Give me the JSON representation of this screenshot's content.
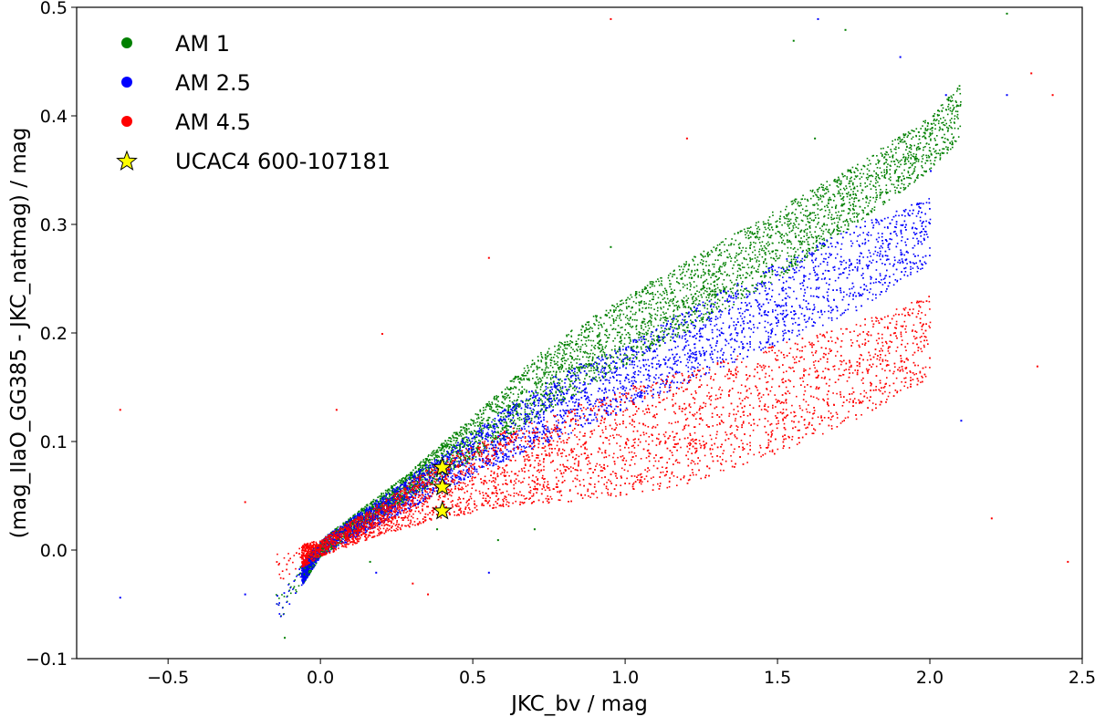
{
  "chart_data": {
    "type": "scatter",
    "title": "",
    "xlabel": "JKC_bv / mag",
    "ylabel": "(mag_IIaO_GG385 - JKC_natmag) / mag",
    "xlim": [
      -0.8,
      2.5
    ],
    "ylim": [
      -0.1,
      0.5
    ],
    "xticks": [
      -0.5,
      0.0,
      0.5,
      1.0,
      1.5,
      2.0,
      2.5
    ],
    "xtick_labels": [
      "−0.5",
      "0.0",
      "0.5",
      "1.0",
      "1.5",
      "2.0",
      "2.5"
    ],
    "yticks": [
      -0.1,
      0.0,
      0.1,
      0.2,
      0.3,
      0.4,
      0.5
    ],
    "ytick_labels": [
      "−0.1",
      "0.0",
      "0.1",
      "0.2",
      "0.3",
      "0.4",
      "0.5"
    ],
    "grid": false,
    "legend_position": "top-left",
    "series": [
      {
        "name": "AM 1",
        "color": "#008000",
        "marker": "dot",
        "envelope": [
          [
            -0.15,
            -0.07,
            -0.04
          ],
          [
            0.0,
            -0.005,
            0.01
          ],
          [
            0.3,
            0.05,
            0.075
          ],
          [
            0.5,
            0.085,
            0.125
          ],
          [
            0.75,
            0.13,
            0.19
          ],
          [
            1.0,
            0.17,
            0.235
          ],
          [
            1.25,
            0.21,
            0.275
          ],
          [
            1.5,
            0.25,
            0.315
          ],
          [
            1.75,
            0.3,
            0.355
          ],
          [
            2.0,
            0.35,
            0.4
          ],
          [
            2.1,
            0.38,
            0.43
          ]
        ],
        "outliers": [
          [
            -0.12,
            -0.08
          ],
          [
            0.16,
            -0.01
          ],
          [
            0.38,
            0.02
          ],
          [
            0.58,
            0.01
          ],
          [
            1.55,
            0.47
          ],
          [
            1.72,
            0.48
          ],
          [
            2.25,
            0.495
          ],
          [
            1.62,
            0.38
          ],
          [
            0.95,
            0.28
          ],
          [
            0.7,
            0.02
          ]
        ]
      },
      {
        "name": "AM 2.5",
        "color": "#0000ff",
        "marker": "dot",
        "envelope": [
          [
            -0.15,
            -0.07,
            -0.04
          ],
          [
            0.0,
            -0.005,
            0.01
          ],
          [
            0.3,
            0.04,
            0.07
          ],
          [
            0.5,
            0.07,
            0.11
          ],
          [
            0.75,
            0.1,
            0.16
          ],
          [
            1.0,
            0.13,
            0.19
          ],
          [
            1.25,
            0.16,
            0.23
          ],
          [
            1.5,
            0.19,
            0.265
          ],
          [
            1.75,
            0.22,
            0.3
          ],
          [
            2.0,
            0.265,
            0.325
          ]
        ],
        "outliers": [
          [
            -0.66,
            -0.043
          ],
          [
            -0.25,
            -0.04
          ],
          [
            0.32,
            0.065
          ],
          [
            0.18,
            -0.02
          ],
          [
            0.55,
            -0.02
          ],
          [
            2.0,
            0.35
          ],
          [
            2.05,
            0.42
          ],
          [
            2.25,
            0.42
          ],
          [
            1.9,
            0.455
          ],
          [
            1.63,
            0.49
          ],
          [
            2.1,
            0.12
          ]
        ]
      },
      {
        "name": "AM 4.5",
        "color": "#ff0000",
        "marker": "dot",
        "envelope": [
          [
            -0.15,
            -0.03,
            0.0
          ],
          [
            0.0,
            -0.005,
            0.01
          ],
          [
            0.2,
            0.015,
            0.045
          ],
          [
            0.4,
            0.03,
            0.085
          ],
          [
            0.6,
            0.04,
            0.11
          ],
          [
            0.8,
            0.045,
            0.13
          ],
          [
            1.0,
            0.05,
            0.15
          ],
          [
            1.25,
            0.065,
            0.17
          ],
          [
            1.5,
            0.09,
            0.19
          ],
          [
            1.75,
            0.12,
            0.21
          ],
          [
            2.0,
            0.16,
            0.235
          ]
        ],
        "outliers": [
          [
            -0.66,
            0.13
          ],
          [
            -0.25,
            0.045
          ],
          [
            0.2,
            0.2
          ],
          [
            0.35,
            -0.04
          ],
          [
            0.55,
            0.27
          ],
          [
            0.05,
            0.13
          ],
          [
            2.33,
            0.44
          ],
          [
            2.4,
            0.42
          ],
          [
            2.35,
            0.17
          ],
          [
            2.45,
            -0.01
          ],
          [
            2.2,
            0.03
          ],
          [
            1.2,
            0.38
          ],
          [
            0.3,
            -0.03
          ],
          [
            0.95,
            0.49
          ]
        ]
      }
    ],
    "highlight": {
      "name": "UCAC4 600-107181",
      "color": "#ffff00",
      "marker": "star",
      "points": [
        [
          0.4,
          0.076
        ],
        [
          0.4,
          0.058
        ],
        [
          0.4,
          0.036
        ]
      ]
    }
  }
}
